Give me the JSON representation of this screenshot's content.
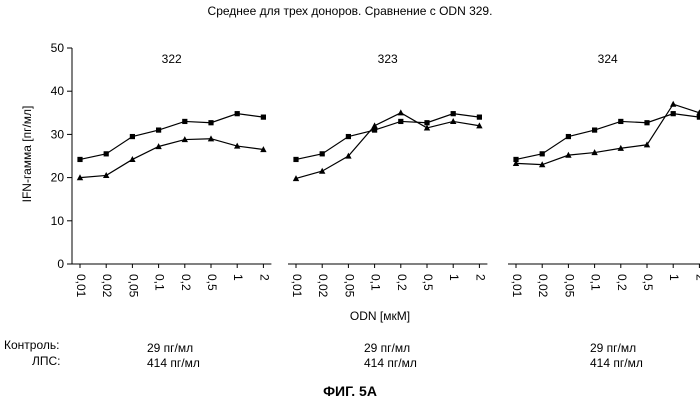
{
  "title": "Среднее для трех доноров. Сравнение с ODN 329.",
  "figure_caption": "ФИГ. 5А",
  "chart_data": {
    "type": "line",
    "xlabel": "ODN [мкМ]",
    "ylabel": "IFN-гамма [пг/мл]",
    "ylim": [
      0,
      50
    ],
    "yticks": [
      0,
      10,
      20,
      30,
      40,
      50
    ],
    "categories": [
      "0,01",
      "0,02",
      "0,05",
      "0,1",
      "0,2",
      "0,5",
      "1",
      "2"
    ],
    "grid": false,
    "panels": [
      {
        "label": "322",
        "series": [
          {
            "marker": "square",
            "values": [
              24.2,
              25.5,
              29.5,
              31.0,
              33.0,
              32.7,
              34.8,
              34.0
            ]
          },
          {
            "marker": "triangle",
            "values": [
              20.0,
              20.5,
              24.2,
              27.2,
              28.8,
              29.0,
              27.3,
              26.5
            ]
          }
        ]
      },
      {
        "label": "323",
        "series": [
          {
            "marker": "square",
            "values": [
              24.2,
              25.5,
              29.5,
              31.0,
              33.0,
              32.7,
              34.8,
              34.0
            ]
          },
          {
            "marker": "triangle",
            "values": [
              19.8,
              21.5,
              25.0,
              32.0,
              35.0,
              31.5,
              33.0,
              32.0
            ]
          }
        ]
      },
      {
        "label": "324",
        "series": [
          {
            "marker": "square",
            "values": [
              24.2,
              25.5,
              29.5,
              31.0,
              33.0,
              32.7,
              34.8,
              34.0
            ]
          },
          {
            "marker": "triangle",
            "values": [
              23.3,
              23.0,
              25.2,
              25.8,
              26.8,
              27.6,
              37.0,
              35.0
            ]
          }
        ]
      }
    ]
  },
  "notes": {
    "control_label": "Контроль:",
    "lps_label": "ЛПС:",
    "panels": [
      {
        "control": "29 пг/мл",
        "lps": "414 пг/мл"
      },
      {
        "control": "29 пг/мл",
        "lps": "414 пг/мл"
      },
      {
        "control": "29 пг/мл",
        "lps": "414 пг/мл"
      }
    ]
  }
}
